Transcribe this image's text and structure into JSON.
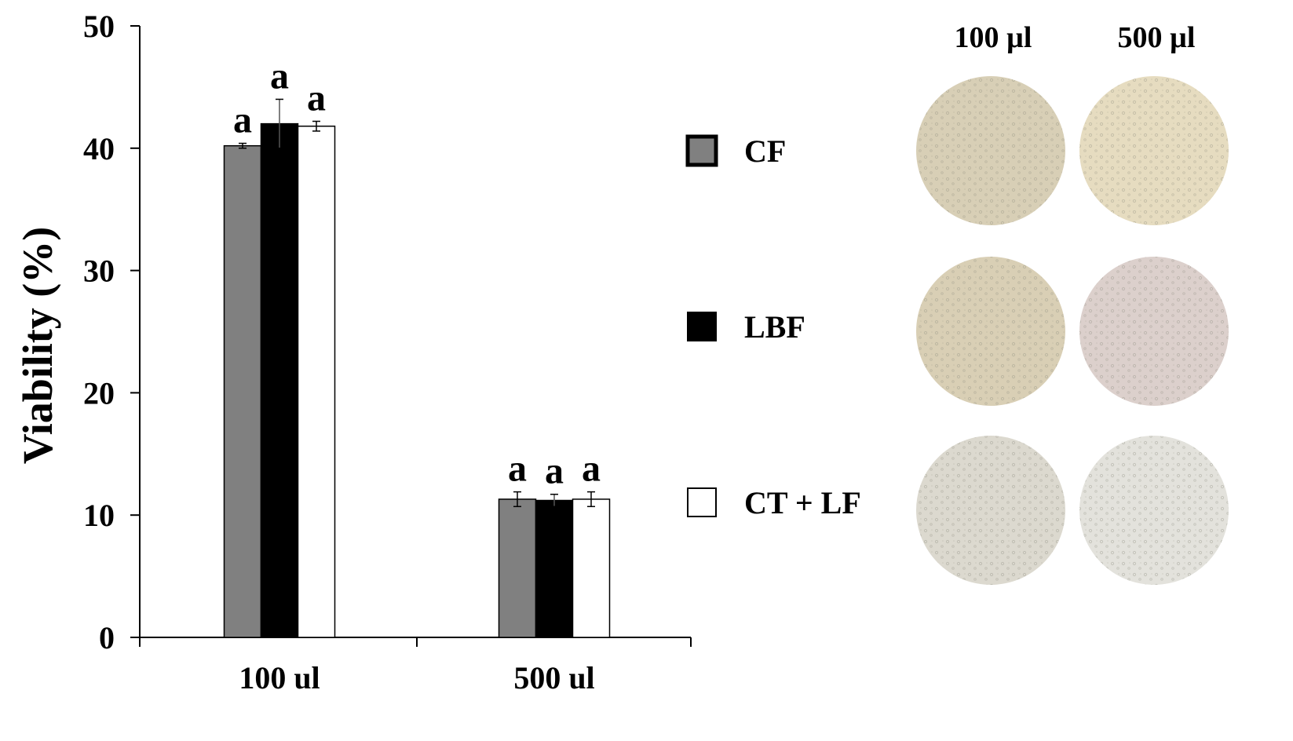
{
  "chart_data": {
    "type": "bar",
    "categories": [
      "100 ul",
      "500 ul"
    ],
    "series": [
      {
        "name": "CF",
        "values": [
          40.2,
          11.3
        ],
        "errors": [
          0.2,
          0.6
        ],
        "letters": [
          "a",
          "a"
        ],
        "color": "#808080"
      },
      {
        "name": "LBF",
        "values": [
          42.0,
          11.2
        ],
        "errors": [
          2.0,
          0.5
        ],
        "letters": [
          "a",
          "a"
        ],
        "color": "#000000"
      },
      {
        "name": "CT + LF",
        "values": [
          41.8,
          11.3
        ],
        "errors": [
          0.4,
          0.6
        ],
        "letters": [
          "a",
          "a"
        ],
        "color": "#ffffff"
      }
    ],
    "ylabel": "Viability (%)",
    "xlabel": "",
    "ylim": [
      0,
      50
    ],
    "yticks": [
      "0",
      "10",
      "20",
      "30",
      "40",
      "50"
    ],
    "grid": false,
    "legend_position": "right"
  },
  "micrographs": {
    "column_labels": [
      "100 µl",
      "500 µl"
    ],
    "rows": [
      {
        "series": "CF",
        "tints": [
          "#d8cfb6",
          "#e6dcc0"
        ]
      },
      {
        "series": "LBF",
        "tints": [
          "#d9cfb5",
          "#dcd0cc"
        ]
      },
      {
        "series": "CT + LF",
        "tints": [
          "#dcd9cf",
          "#e3e2dc"
        ]
      }
    ]
  }
}
